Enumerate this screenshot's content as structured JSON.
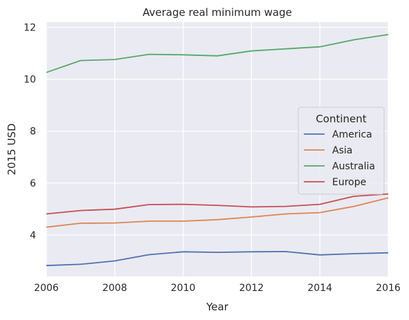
{
  "chart_data": {
    "type": "line",
    "title": "Average real minimum wage",
    "xlabel": "Year",
    "ylabel": "2015 USD",
    "xlim": [
      2006,
      2016
    ],
    "ylim": [
      2.4,
      12.2
    ],
    "x_ticks": [
      2006,
      2008,
      2010,
      2012,
      2014,
      2016
    ],
    "y_ticks": [
      4,
      6,
      8,
      10,
      12
    ],
    "grid": true,
    "legend": {
      "title": "Continent",
      "placement": "right"
    },
    "x": [
      2006,
      2007,
      2008,
      2009,
      2010,
      2011,
      2012,
      2013,
      2014,
      2015,
      2016
    ],
    "series": [
      {
        "name": "America",
        "color": "#4c72b0",
        "values": [
          2.82,
          2.87,
          3.0,
          3.24,
          3.35,
          3.33,
          3.35,
          3.36,
          3.23,
          3.28,
          3.31
        ]
      },
      {
        "name": "Asia",
        "color": "#dd8452",
        "values": [
          4.3,
          4.45,
          4.46,
          4.53,
          4.53,
          4.59,
          4.69,
          4.81,
          4.86,
          5.1,
          5.43
        ]
      },
      {
        "name": "Australia",
        "color": "#55a868",
        "values": [
          10.26,
          10.72,
          10.76,
          10.96,
          10.94,
          10.9,
          11.09,
          11.17,
          11.25,
          11.52,
          11.72
        ]
      },
      {
        "name": "Europe",
        "color": "#c44e52",
        "values": [
          4.81,
          4.94,
          4.99,
          5.17,
          5.18,
          5.14,
          5.08,
          5.1,
          5.18,
          5.49,
          5.58
        ]
      }
    ]
  }
}
